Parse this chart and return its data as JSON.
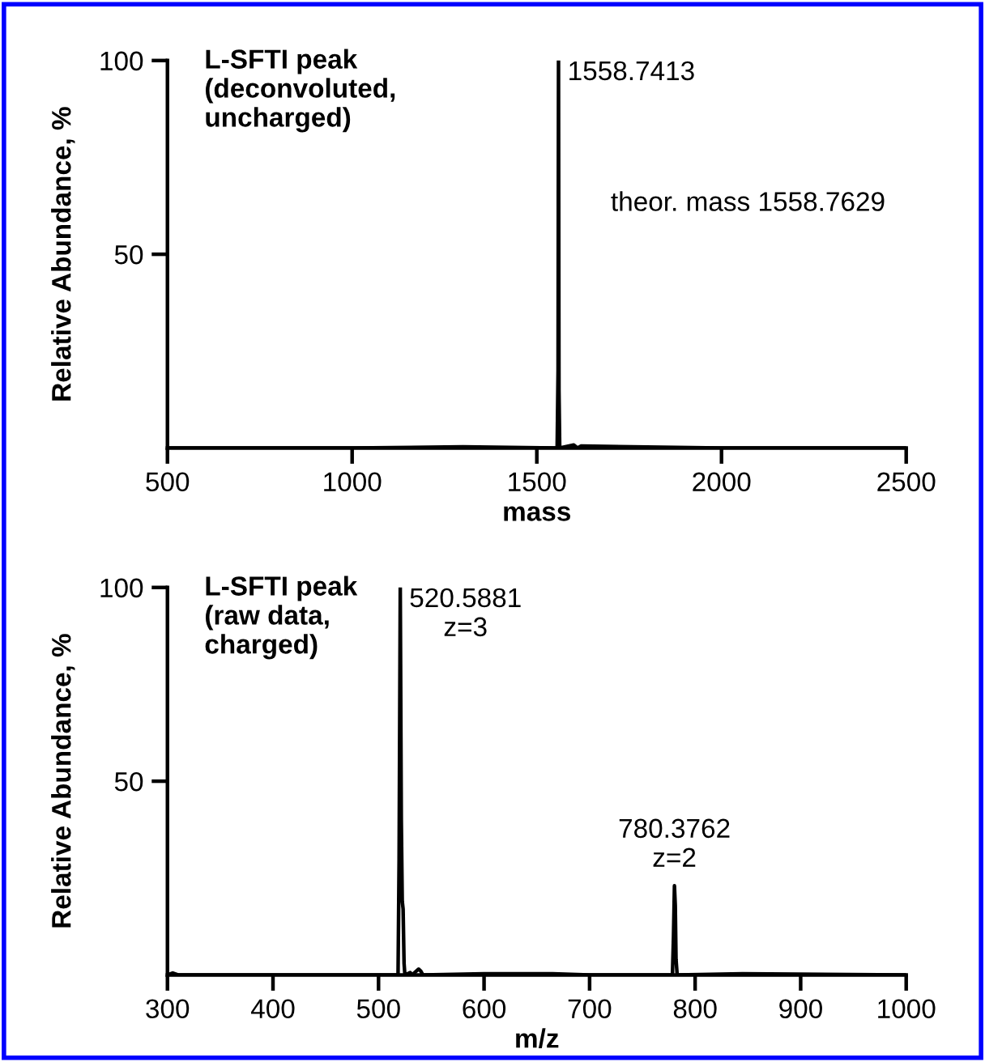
{
  "chart_data": [
    {
      "type": "line",
      "xlabel": "mass",
      "ylabel": "Relative Abundance, %",
      "xlim": [
        500,
        2500
      ],
      "xticks": [
        500,
        1000,
        1500,
        2000,
        2500
      ],
      "ylim": [
        0,
        100
      ],
      "yticks": [
        50,
        100
      ],
      "series": [
        {
          "color": "#000000",
          "x": [
            500,
            1000,
            1300,
            1555,
            1557.5,
            1558.7,
            1560,
            1562,
            1600,
            1610,
            1620,
            2000,
            2500
          ],
          "values": [
            0,
            0,
            0.3,
            0,
            20,
            100,
            15,
            0,
            0.8,
            0,
            0.5,
            0,
            0
          ]
        }
      ],
      "annotations": [
        "L-SFTI peak\n(deconvoluted,\nuncharged)",
        {
          "text": "1558.7413",
          "x": 1558.7413,
          "y": 100
        },
        "theor. mass 1558.7629"
      ]
    },
    {
      "type": "line",
      "xlabel": "m/z",
      "ylabel": "Relative Abundance, %",
      "xlim": [
        300,
        1000
      ],
      "xticks": [
        300,
        400,
        500,
        600,
        700,
        800,
        900,
        1000
      ],
      "ylim": [
        0,
        100
      ],
      "yticks": [
        50,
        100
      ],
      "series": [
        {
          "color": "#000000",
          "x": [
            300,
            305,
            310,
            500,
            518.5,
            519.5,
            520.6,
            521.6,
            522.5,
            523.3,
            524.2,
            525,
            530,
            532,
            535,
            538,
            540,
            542,
            600,
            665,
            700,
            778.5,
            779.5,
            780.4,
            781.2,
            781.9,
            783,
            845,
            1000
          ],
          "values": [
            0,
            0.5,
            0,
            0,
            0,
            30,
            100,
            40,
            19,
            17,
            3,
            0,
            0.6,
            0,
            0.8,
            1.5,
            1,
            0,
            0.3,
            0.3,
            0,
            0,
            10,
            23,
            18,
            4,
            0,
            0.3,
            0
          ]
        }
      ],
      "annotations": [
        "L-SFTI peak\n(raw data,\ncharged)",
        {
          "text": "520.5881\nz=3",
          "x": 520.5881,
          "y": 100
        },
        {
          "text": "780.3762\nz=2",
          "x": 780.3762,
          "y": 23
        }
      ]
    }
  ]
}
